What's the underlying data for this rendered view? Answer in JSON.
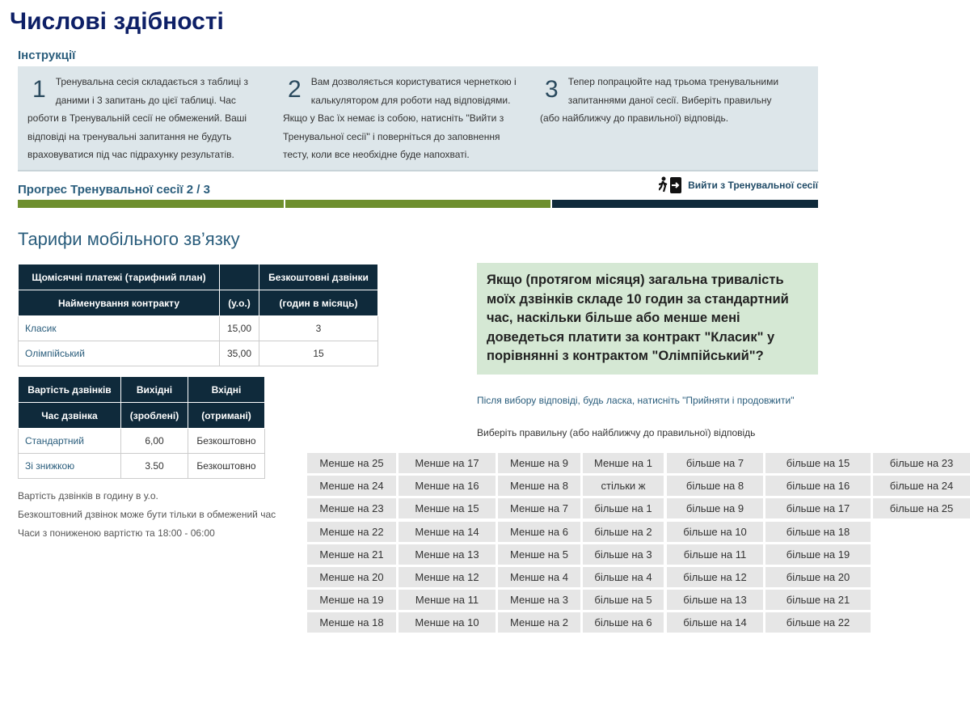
{
  "title": "Числові здібності",
  "instructions": {
    "heading": "Інструкції",
    "steps": [
      {
        "number": 1,
        "text": "Тренувальна сесія складається з таблиці з даними і 3 запитань до цієї таблиці. Час роботи в Тренувальній сесії не обмежений. Ваші відповіді на тренувальні запитання не будуть враховуватися під час підрахунку результатів."
      },
      {
        "number": 2,
        "text": "Вам дозволяється користуватися чернеткою і калькулятором для роботи над відповідями. Якщо у Вас їх немає із собою, натисніть \"Вийти з Тренувальної сесії\" і поверніться до заповнення тесту, коли все необхідне буде напохваті."
      },
      {
        "number": 3,
        "text": "Тепер попрацюйте над трьома тренувальними запитаннями даної сесії. Виберіть правильну (або найближчу до правильної) відповідь."
      }
    ]
  },
  "progress": {
    "label": "Прогрес Тренувальної сесії",
    "current": 2,
    "separator": "/",
    "total": 3
  },
  "exit_link": "Вийти з Тренувальної сесії",
  "section_title": "Тарифи мобільного зв’язку",
  "tariff_table": {
    "header_rows": [
      [
        "Щомісячні платежі (тарифний план)",
        null,
        "Безкоштовні дзвінки"
      ],
      [
        "Найменування контракту",
        "(у.о.)",
        "(годин в місяць)"
      ]
    ],
    "rows": [
      [
        "Класик",
        "15,00",
        3
      ],
      [
        "Олімпійський",
        "35,00",
        15
      ]
    ]
  },
  "call_table": {
    "header_rows": [
      [
        "Вартість дзвінків",
        "Вихідні",
        "Вхідні"
      ],
      [
        "Час дзвінка",
        "(зроблені)",
        "(отримані)"
      ]
    ],
    "rows": [
      [
        "Стандартний",
        "6,00",
        "Безкоштовно"
      ],
      [
        "Зі знижкою",
        "3.50",
        "Безкоштовно"
      ]
    ]
  },
  "notes": [
    "Вартість дзвінків в годину в у.о.",
    "Безкоштовний дзвінок може бути тільки в обмежений час",
    "Часи з пониженою вартістю та 18:00 - 06:00"
  ],
  "question": "Якщо (протягом місяця) загальна тривалість моїх дзвінків складе 10 годин за стандартний час, наскільки більше або менше мені доведеться платити за контракт \"Класик\" у порівнянні з контрактом \"Олімпійський\"?",
  "hint": "Після вибору відповіді, будь ласка, натисніть \"Прийняти і продовжити\"",
  "prompt": "Виберіть правильну (або найближчу до правильної) відповідь",
  "answers": {
    "columns": [
      [
        "Менше на 25",
        "Менше на 24",
        "Менше на 23",
        "Менше на 22",
        "Менше на 21",
        "Менше на 20",
        "Менше на 19",
        "Менше на 18"
      ],
      [
        "Менше на 17",
        "Менше на 16",
        "Менше на 15",
        "Менше на 14",
        "Менше на 13",
        "Менше на 12",
        "Менше на 11",
        "Менше на 10"
      ],
      [
        "Менше на 9",
        "Менше на 8",
        "Менше на 7",
        "Менше на 6",
        "Менше на 5",
        "Менше на 4",
        "Менше на 3",
        "Менше на 2"
      ],
      [
        "Менше на 1",
        "стільки ж",
        "більше на 1",
        "більше на 2",
        "більше на 3",
        "більше на 4",
        "більше на 5",
        "більше на 6"
      ],
      [
        "більше на 7",
        "більше на 8",
        "більше на 9",
        "більше на 10",
        "більше на 11",
        "більше на 12",
        "більше на 13",
        "більше на 14"
      ],
      [
        "більше на 15",
        "більше на 16",
        "більше на 17",
        "більше на 18",
        "більше на 19",
        "більше на 20",
        "більше на 21",
        "більше на 22"
      ],
      [
        "більше на 23",
        "більше на 24",
        "більше на 25"
      ]
    ]
  }
}
